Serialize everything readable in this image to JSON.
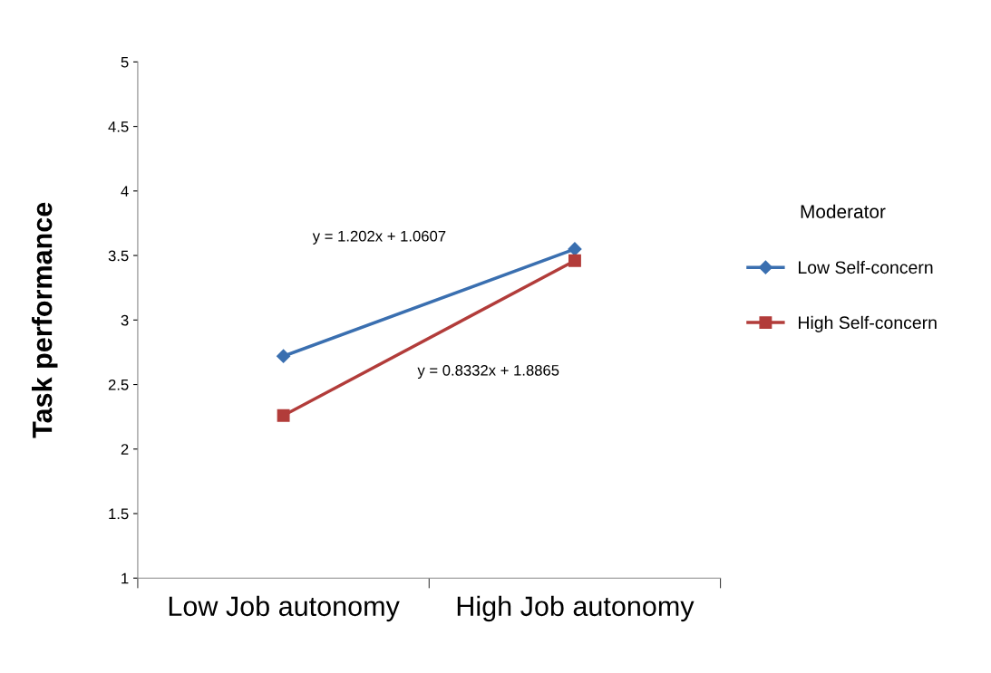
{
  "chart_data": {
    "type": "line",
    "ylabel": "Task performance",
    "legend_title": "Moderator",
    "categories": [
      "Low Job autonomy",
      "High Job autonomy"
    ],
    "series": [
      {
        "name": "Low Self-concern",
        "color": "#3a6fb0",
        "values": [
          2.72,
          3.55
        ],
        "marker": "diamond"
      },
      {
        "name": "High Self-concern",
        "color": "#b23c3a",
        "values": [
          2.26,
          3.46
        ],
        "marker": "square"
      }
    ],
    "ylim": [
      1,
      5
    ],
    "yticks": [
      1,
      1.5,
      2,
      2.5,
      3,
      3.5,
      4,
      4.5,
      5
    ],
    "annotations": [
      "y = 1.202x + 1.0607",
      "y = 0.8332x + 1.8865"
    ],
    "grid": false,
    "legend": "right",
    "line_style": "solid"
  }
}
